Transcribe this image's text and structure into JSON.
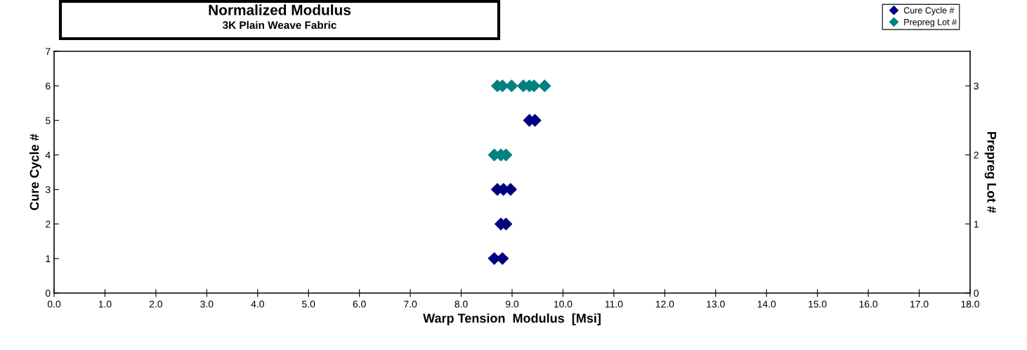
{
  "chart_data": {
    "type": "scatter",
    "title": "Normalized Modulus",
    "subtitle": "3K Plain Weave Fabric",
    "xlabel": "Warp Tension  Modulus  [Msi]",
    "ylabel": "Cure Cycle #",
    "y2label": "Prepreg Lot #",
    "xlim": [
      0,
      18
    ],
    "xticks": [
      {
        "value": 0,
        "label": "0.0"
      },
      {
        "value": 1,
        "label": "1.0"
      },
      {
        "value": 2,
        "label": "2.0"
      },
      {
        "value": 3,
        "label": "3.0"
      },
      {
        "value": 4,
        "label": "4.0"
      },
      {
        "value": 5,
        "label": "5.0"
      },
      {
        "value": 6,
        "label": "6.0"
      },
      {
        "value": 7,
        "label": "7.0"
      },
      {
        "value": 8,
        "label": "8.0"
      },
      {
        "value": 9,
        "label": "9.0"
      },
      {
        "value": 10,
        "label": "10.0"
      },
      {
        "value": 11,
        "label": "11.0"
      },
      {
        "value": 12,
        "label": "12.0"
      },
      {
        "value": 13,
        "label": "13.0"
      },
      {
        "value": 14,
        "label": "14.0"
      },
      {
        "value": 15,
        "label": "15.0"
      },
      {
        "value": 16,
        "label": "16.0"
      },
      {
        "value": 17,
        "label": "17.0"
      },
      {
        "value": 18,
        "label": "18.0"
      }
    ],
    "ylim": [
      0,
      7
    ],
    "yticks": [
      0,
      1,
      2,
      3,
      4,
      5,
      6,
      7
    ],
    "y2lim": [
      0,
      3.5
    ],
    "y2ticks": [
      0,
      1,
      2,
      3
    ],
    "marker": "diamond",
    "legend": "top right",
    "grid": false,
    "series": [
      {
        "name": "Cure Cycle #",
        "color": "#000080",
        "x": [
          8.65,
          8.81,
          8.78,
          8.88,
          8.71,
          8.83,
          8.97,
          9.34,
          9.45
        ],
        "values": [
          1,
          1,
          2,
          2,
          3,
          3,
          3,
          5,
          5
        ]
      },
      {
        "name": "Prepreg Lot #",
        "color": "#008080",
        "axis": "y2",
        "x": [
          8.65,
          8.78,
          8.88,
          8.71,
          8.81,
          8.99,
          9.22,
          9.34,
          9.43,
          9.64
        ],
        "values": [
          2,
          2,
          2,
          3,
          3,
          3,
          3,
          3,
          3,
          3
        ]
      }
    ]
  }
}
